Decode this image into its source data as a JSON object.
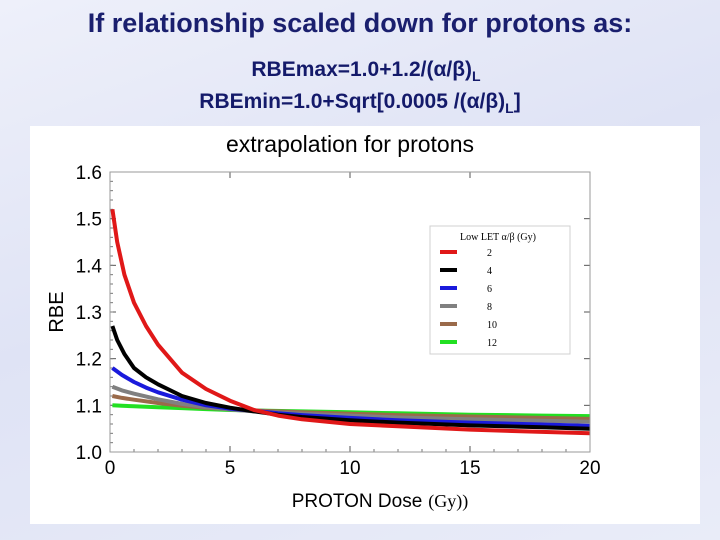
{
  "slide": {
    "title": "If relationship scaled down for protons as:",
    "formula1": {
      "main": "RBEmax=1.0+1.2/(α/β)",
      "sub": "L"
    },
    "formula2": {
      "main": "RBEmin=1.0+Sqrt[0.0005 /(α/β)",
      "sub": "L",
      "tail": "]"
    }
  },
  "chart_data": {
    "type": "line",
    "title": "extrapolation for protons",
    "xlabel": "PROTON Dose",
    "xlabel_unit": "(Gy))",
    "ylabel": "RBE",
    "xlim": [
      0,
      20
    ],
    "ylim": [
      1.0,
      1.6
    ],
    "xticks": [
      0,
      5,
      10,
      15,
      20
    ],
    "yticks": [
      "1.0",
      "1.1",
      "1.2",
      "1.3",
      "1.4",
      "1.5",
      "1.6"
    ],
    "legend": {
      "title": "Low LET α/β (Gy)",
      "placement": "top-right"
    },
    "series": [
      {
        "name": "2",
        "color": "#e01818",
        "alpha_beta": 2,
        "points": [
          [
            0.1,
            1.52
          ],
          [
            0.3,
            1.45
          ],
          [
            0.6,
            1.38
          ],
          [
            1,
            1.32
          ],
          [
            1.5,
            1.27
          ],
          [
            2,
            1.23
          ],
          [
            3,
            1.17
          ],
          [
            4,
            1.135
          ],
          [
            5,
            1.11
          ],
          [
            6,
            1.09
          ],
          [
            7,
            1.078
          ],
          [
            8,
            1.07
          ],
          [
            10,
            1.06
          ],
          [
            12,
            1.055
          ],
          [
            15,
            1.048
          ],
          [
            18,
            1.043
          ],
          [
            20,
            1.04
          ]
        ]
      },
      {
        "name": "4",
        "color": "#000000",
        "alpha_beta": 4,
        "points": [
          [
            0.1,
            1.27
          ],
          [
            0.3,
            1.24
          ],
          [
            0.6,
            1.21
          ],
          [
            1,
            1.18
          ],
          [
            1.5,
            1.16
          ],
          [
            2,
            1.145
          ],
          [
            3,
            1.12
          ],
          [
            4,
            1.105
          ],
          [
            5,
            1.095
          ],
          [
            6,
            1.087
          ],
          [
            7,
            1.08
          ],
          [
            8,
            1.075
          ],
          [
            10,
            1.068
          ],
          [
            12,
            1.063
          ],
          [
            15,
            1.057
          ],
          [
            18,
            1.053
          ],
          [
            20,
            1.05
          ]
        ]
      },
      {
        "name": "6",
        "color": "#1a1adc",
        "alpha_beta": 6,
        "points": [
          [
            0.1,
            1.18
          ],
          [
            0.5,
            1.165
          ],
          [
            1,
            1.15
          ],
          [
            1.5,
            1.138
          ],
          [
            2,
            1.128
          ],
          [
            3,
            1.112
          ],
          [
            4,
            1.1
          ],
          [
            5,
            1.093
          ],
          [
            6,
            1.088
          ],
          [
            7,
            1.083
          ],
          [
            8,
            1.079
          ],
          [
            10,
            1.073
          ],
          [
            12,
            1.068
          ],
          [
            15,
            1.063
          ],
          [
            18,
            1.059
          ],
          [
            20,
            1.056
          ]
        ]
      },
      {
        "name": "8",
        "color": "#808080",
        "alpha_beta": 8,
        "points": [
          [
            0.1,
            1.14
          ],
          [
            0.5,
            1.132
          ],
          [
            1,
            1.125
          ],
          [
            2,
            1.113
          ],
          [
            3,
            1.103
          ],
          [
            4,
            1.096
          ],
          [
            5,
            1.091
          ],
          [
            6,
            1.087
          ],
          [
            8,
            1.082
          ],
          [
            10,
            1.078
          ],
          [
            12,
            1.074
          ],
          [
            15,
            1.07
          ],
          [
            18,
            1.067
          ],
          [
            20,
            1.065
          ]
        ]
      },
      {
        "name": "10",
        "color": "#9a6a4a",
        "alpha_beta": 10,
        "points": [
          [
            0.1,
            1.12
          ],
          [
            0.5,
            1.116
          ],
          [
            1,
            1.112
          ],
          [
            2,
            1.105
          ],
          [
            3,
            1.099
          ],
          [
            4,
            1.095
          ],
          [
            5,
            1.092
          ],
          [
            6,
            1.089
          ],
          [
            8,
            1.085
          ],
          [
            10,
            1.082
          ],
          [
            12,
            1.079
          ],
          [
            15,
            1.076
          ],
          [
            18,
            1.073
          ],
          [
            20,
            1.071
          ]
        ]
      },
      {
        "name": "12",
        "color": "#22e022",
        "alpha_beta": 12,
        "points": [
          [
            0.1,
            1.1
          ],
          [
            0.5,
            1.099
          ],
          [
            1,
            1.098
          ],
          [
            2,
            1.096
          ],
          [
            3,
            1.094
          ],
          [
            4,
            1.092
          ],
          [
            5,
            1.09
          ],
          [
            6,
            1.089
          ],
          [
            8,
            1.087
          ],
          [
            10,
            1.085
          ],
          [
            12,
            1.083
          ],
          [
            15,
            1.08
          ],
          [
            18,
            1.078
          ],
          [
            20,
            1.077
          ]
        ]
      }
    ]
  }
}
